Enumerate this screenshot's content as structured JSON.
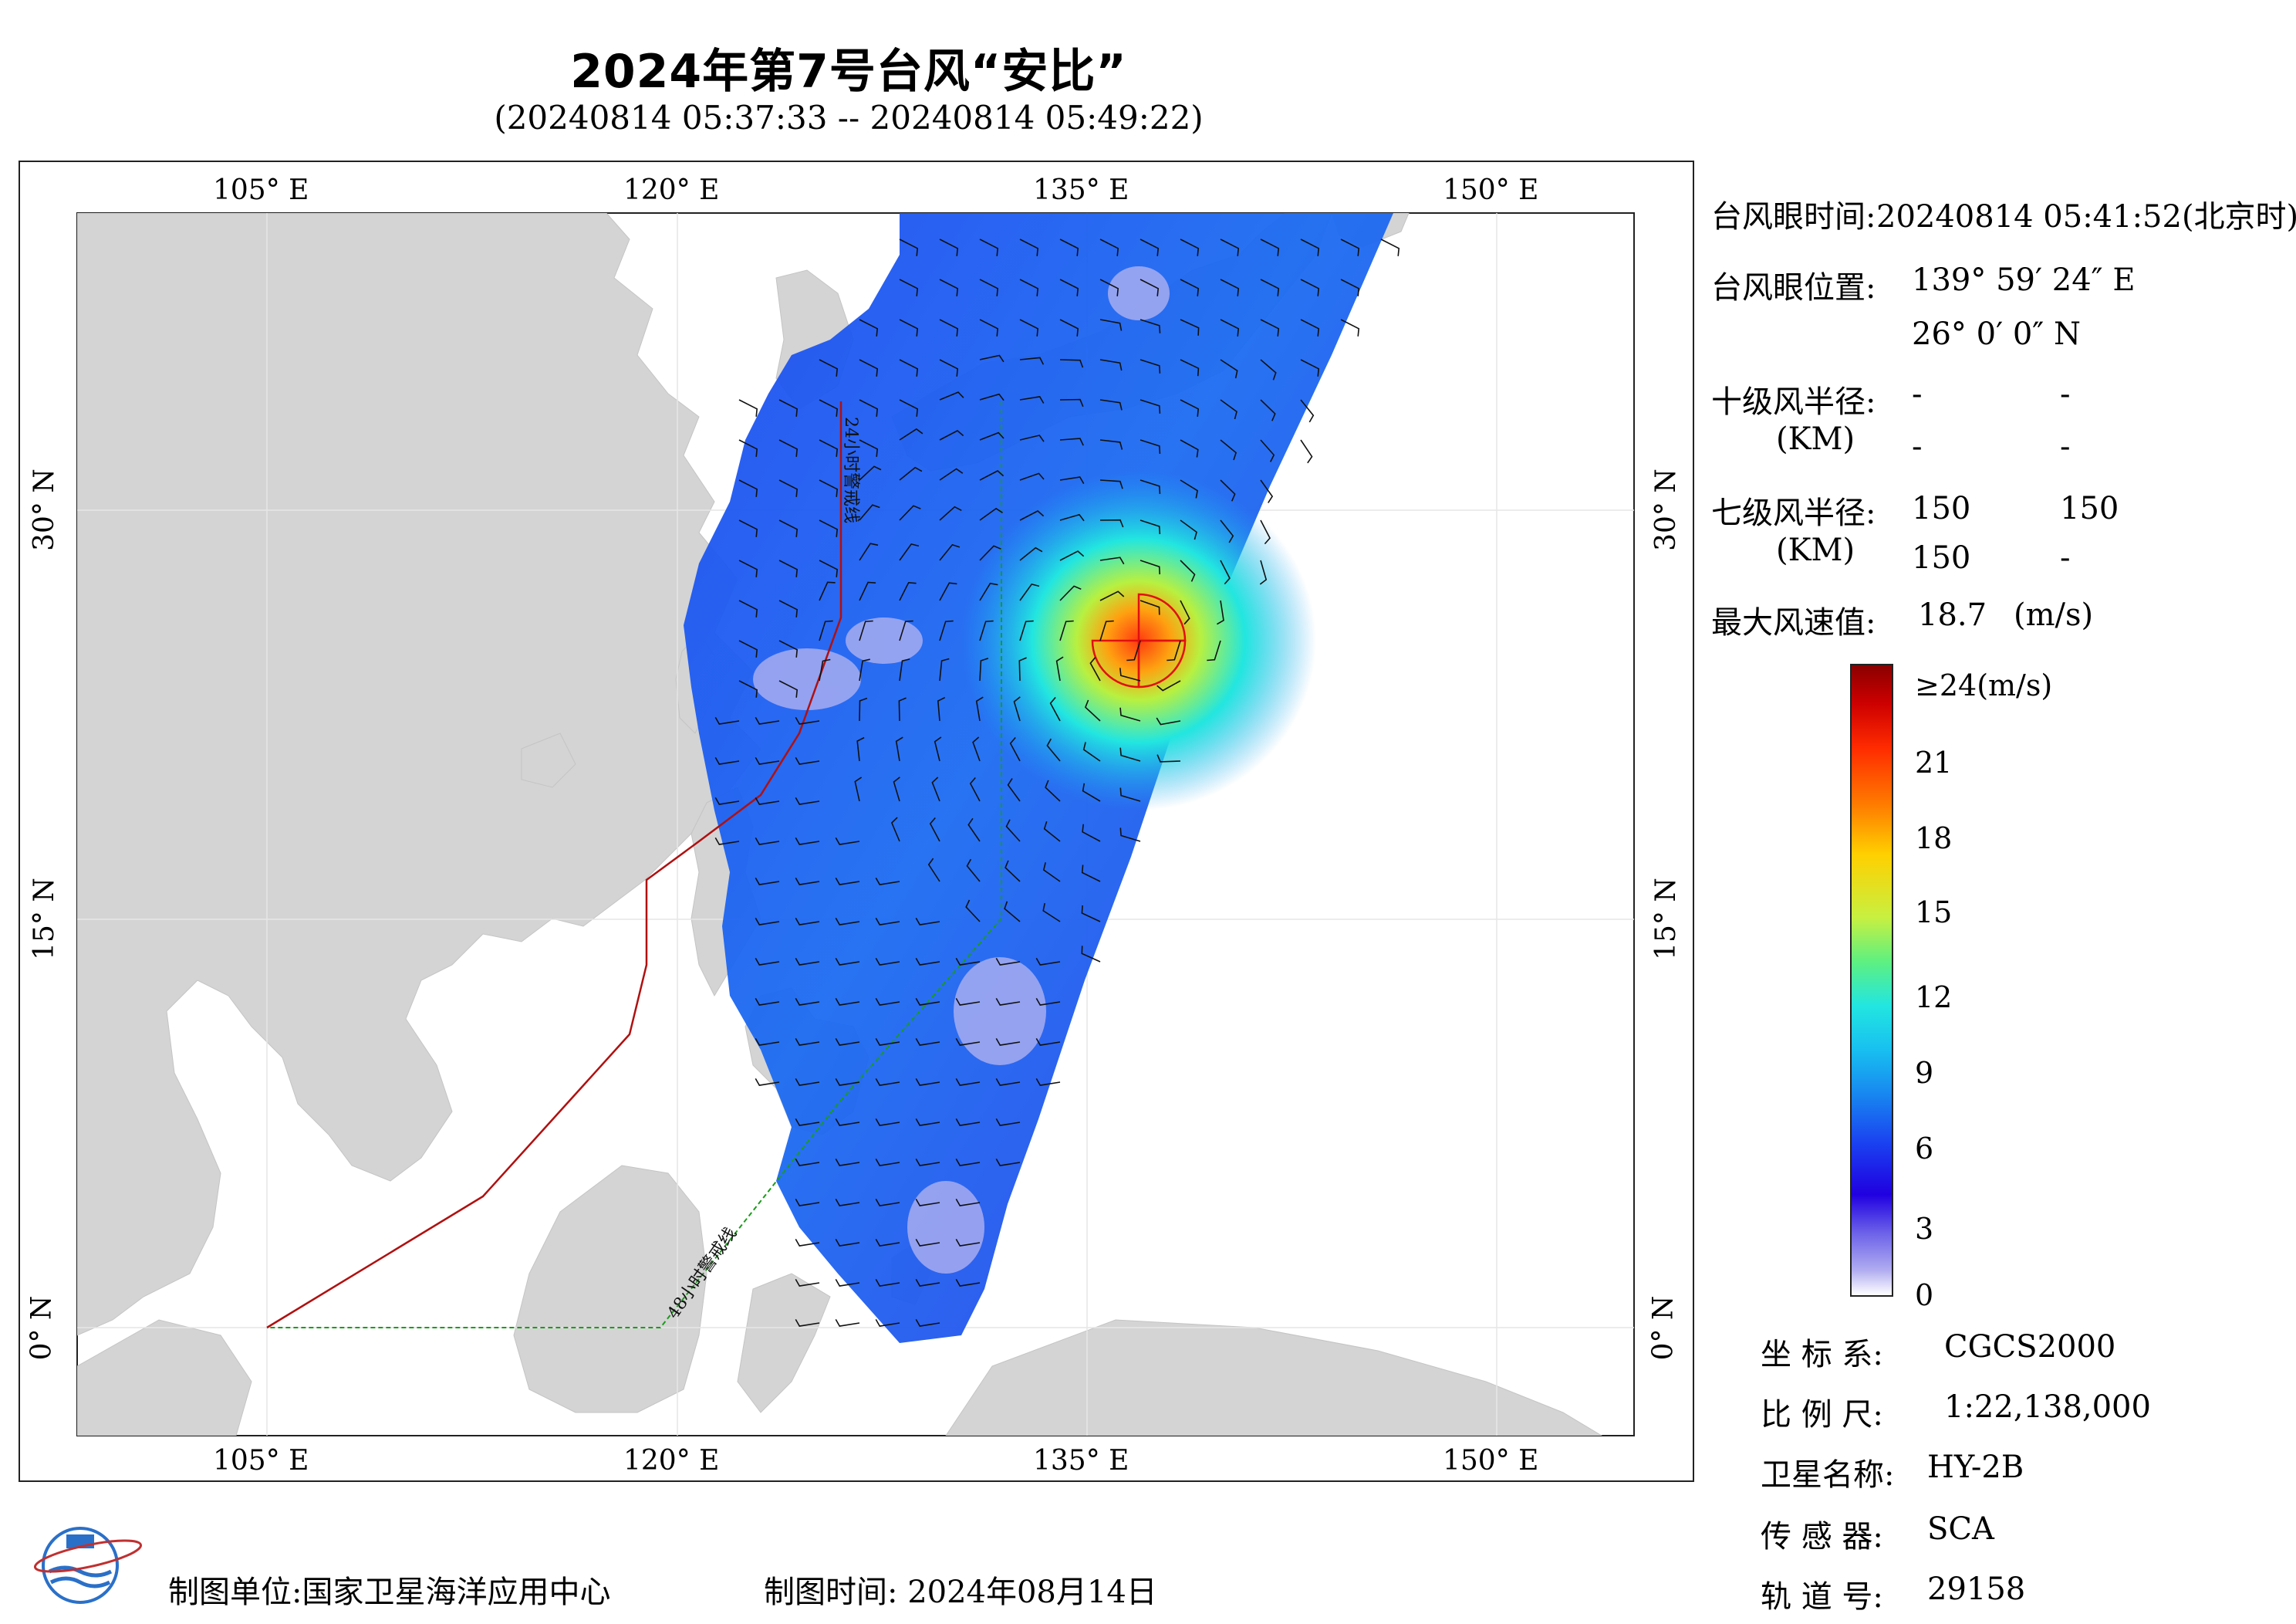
{
  "header": {
    "title": "2024年第7号台风“安比”",
    "subtitle": "(20240814 05:37:33 -- 20240814 05:49:22)"
  },
  "map": {
    "lon_ticks": [
      "105° E",
      "120° E",
      "135° E",
      "150° E"
    ],
    "lat_ticks": [
      "30° N",
      "15° N",
      "0° N"
    ],
    "line_labels": {
      "warning_24h": "24小时警戒线",
      "warning_48h": "48小时警戒线"
    },
    "colors": {
      "land": "#d4d4d4",
      "ocean": "#ffffff",
      "warning_24h": "#b01010",
      "warning_48h": "#1a9c1a",
      "wind_radius_7": "#e01010"
    }
  },
  "info": {
    "eye_time_label": "台风眼时间:",
    "eye_time_value": "20240814 05:41:52(北京时)",
    "eye_pos_label": "台风眼位置:",
    "eye_lon": "139° 59′ 24″ E",
    "eye_lat": "26° 0′ 0″ N",
    "r10_label": "十级风半径:",
    "r10_unit": "(KM)",
    "r10_values": [
      "-",
      "-",
      "-",
      "-"
    ],
    "r7_label": "七级风半径:",
    "r7_unit": "(KM)",
    "r7_values": [
      "150",
      "150",
      "150",
      "-"
    ],
    "max_wind_label": "最大风速值:",
    "max_wind_value": "18.7",
    "max_wind_unit": "(m/s)"
  },
  "colorbar": {
    "top_label": "≥24(m/s)",
    "labels": [
      "21",
      "18",
      "15",
      "12",
      "9",
      "6",
      "3",
      "0"
    ]
  },
  "meta": {
    "crs_label": "坐 标 系:",
    "crs_value": "CGCS2000",
    "scale_label": "比 例 尺:",
    "scale_value": "1:22,138,000",
    "sat_label": "卫星名称:",
    "sat_value": "HY-2B",
    "sensor_label": "传 感 器:",
    "sensor_value": "SCA",
    "orbit_label": "轨 道 号:",
    "orbit_value": "29158"
  },
  "footer": {
    "unit": "制图单位:国家卫星海洋应用中心",
    "time": "制图时间:  2024年08月14日"
  }
}
